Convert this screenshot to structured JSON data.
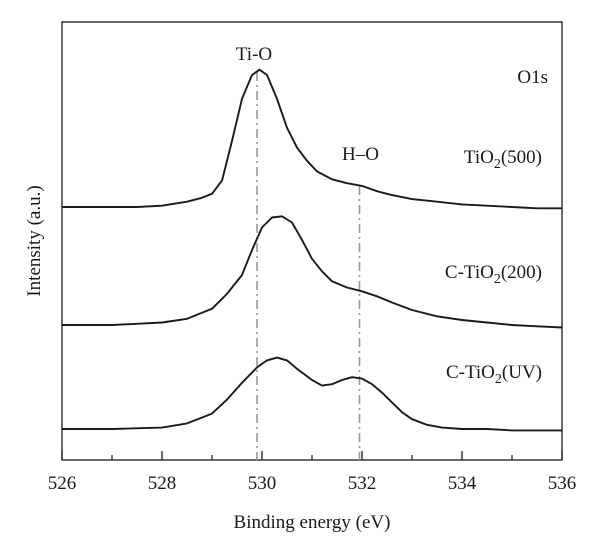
{
  "chart_data": {
    "type": "line",
    "xlabel": "Binding energy (eV)",
    "ylabel": "Intensity (a.u.)",
    "xlim": [
      526,
      536
    ],
    "x_ticks": [
      "526",
      "528",
      "530",
      "532",
      "534",
      "536"
    ],
    "minor_x_ticks": [
      527,
      529,
      531,
      533,
      535
    ],
    "y_ticks": "none",
    "grid": false,
    "legend": "none",
    "corner_label": "O1s",
    "reference_lines": [
      {
        "label": "Ti-O",
        "x": 529.9,
        "style": "dash-dot",
        "color": "#9a9a9a"
      },
      {
        "label": "H–O",
        "x": 531.95,
        "style": "dash-dot",
        "color": "#9a9a9a"
      }
    ],
    "series": [
      {
        "name": "TiO₂(500)",
        "label_main": "TiO",
        "label_sub": "2",
        "label_tail": "(500)",
        "x": [
          526.0,
          527.0,
          527.5,
          528.0,
          528.5,
          528.8,
          529.0,
          529.2,
          529.4,
          529.6,
          529.8,
          529.95,
          530.1,
          530.3,
          530.5,
          530.7,
          530.9,
          531.1,
          531.4,
          531.7,
          532.0,
          532.3,
          532.6,
          533.0,
          533.5,
          534.0,
          534.5,
          535.0,
          535.5,
          536.0
        ],
        "y": [
          0.0,
          0.0,
          0.0,
          0.01,
          0.04,
          0.07,
          0.1,
          0.2,
          0.5,
          0.82,
          1.0,
          1.04,
          1.0,
          0.82,
          0.6,
          0.45,
          0.35,
          0.27,
          0.21,
          0.18,
          0.16,
          0.12,
          0.09,
          0.06,
          0.04,
          0.02,
          0.01,
          0.0,
          -0.01,
          -0.01
        ]
      },
      {
        "name": "C-TiO₂(200)",
        "label_main": "C-TiO",
        "label_sub": "2",
        "label_tail": "(200)",
        "x": [
          526.0,
          527.0,
          527.5,
          528.0,
          528.5,
          529.0,
          529.3,
          529.6,
          529.8,
          530.0,
          530.2,
          530.4,
          530.6,
          530.8,
          531.0,
          531.2,
          531.4,
          531.7,
          532.0,
          532.3,
          532.6,
          533.0,
          533.5,
          534.0,
          534.5,
          535.0,
          535.5,
          536.0
        ],
        "y": [
          0.0,
          0.0,
          0.01,
          0.02,
          0.05,
          0.13,
          0.25,
          0.4,
          0.6,
          0.78,
          0.86,
          0.87,
          0.82,
          0.68,
          0.53,
          0.43,
          0.35,
          0.3,
          0.27,
          0.23,
          0.18,
          0.12,
          0.07,
          0.04,
          0.02,
          0.0,
          -0.01,
          -0.02
        ]
      },
      {
        "name": "C-TiO₂(UV)",
        "label_main": "C-TiO",
        "label_sub": "2",
        "label_tail": "(UV)",
        "x": [
          526.0,
          527.0,
          528.0,
          528.5,
          529.0,
          529.3,
          529.6,
          529.9,
          530.1,
          530.3,
          530.5,
          530.7,
          531.0,
          531.2,
          531.4,
          531.6,
          531.8,
          532.0,
          532.2,
          532.4,
          532.6,
          532.8,
          533.0,
          533.3,
          533.6,
          534.0,
          534.5,
          535.0,
          535.5,
          536.0
        ],
        "y": [
          0.0,
          0.0,
          0.01,
          0.04,
          0.11,
          0.21,
          0.33,
          0.44,
          0.49,
          0.51,
          0.49,
          0.43,
          0.35,
          0.31,
          0.32,
          0.35,
          0.37,
          0.36,
          0.32,
          0.26,
          0.19,
          0.12,
          0.07,
          0.03,
          0.01,
          0.0,
          0.0,
          -0.01,
          -0.01,
          -0.01
        ]
      }
    ]
  }
}
